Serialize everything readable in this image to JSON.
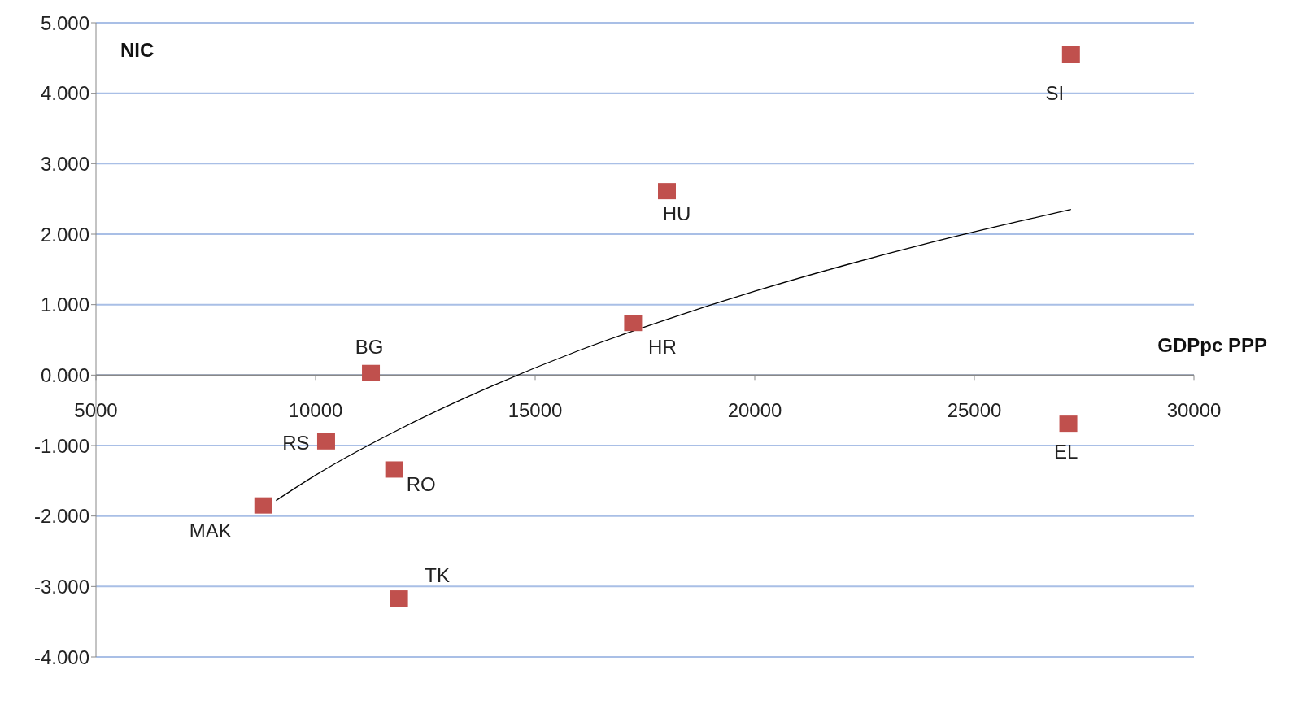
{
  "chart_data": {
    "type": "scatter",
    "xlabel": "GDPpc PPP",
    "ylabel": "NIC",
    "xlim": [
      5000,
      30000
    ],
    "xticks": [
      5000,
      10000,
      15000,
      20000,
      25000,
      30000
    ],
    "ylim": [
      -4,
      5
    ],
    "yticks": [
      {
        "value": -4,
        "label": "-4.000"
      },
      {
        "value": -3,
        "label": "-3.000"
      },
      {
        "value": -2,
        "label": "-2.000"
      },
      {
        "value": -1,
        "label": "-1.000"
      },
      {
        "value": 0,
        "label": "0.000"
      },
      {
        "value": 1,
        "label": "1.000"
      },
      {
        "value": 2,
        "label": "2.000"
      },
      {
        "value": 3,
        "label": "3.000"
      },
      {
        "value": 4,
        "label": "4.000"
      },
      {
        "value": 5,
        "label": "5.000"
      }
    ],
    "grid": "y",
    "legend": false,
    "marker": "square",
    "series": [
      {
        "color": "#c0504d",
        "x": [
          27200,
          18000,
          17230,
          11260,
          10240,
          11790,
          8810,
          11900,
          27140
        ],
        "values": [
          4.55,
          2.61,
          0.74,
          0.03,
          -0.94,
          -1.34,
          -1.85,
          -3.17,
          -0.69
        ]
      },
      {
        "type": "line",
        "color": "#000000",
        "marker": "none",
        "x": [
          9100,
          10000,
          12000,
          14000,
          16000,
          18000,
          20000,
          22000,
          24000,
          26000,
          27200
        ],
        "values": [
          -1.78,
          -1.42,
          -0.74,
          -0.16,
          0.35,
          0.79,
          1.19,
          1.55,
          1.88,
          2.18,
          2.35
        ]
      }
    ],
    "annotations": [
      {
        "text": "SI",
        "x": 27200,
        "y": 4.55
      },
      {
        "text": "HU",
        "x": 18000,
        "y": 2.61
      },
      {
        "text": "HR",
        "x": 17230,
        "y": 0.74
      },
      {
        "text": "BG",
        "x": 11260,
        "y": 0.03
      },
      {
        "text": "RS",
        "x": 10240,
        "y": -0.94
      },
      {
        "text": "RO",
        "x": 11790,
        "y": -1.34
      },
      {
        "text": "MAK",
        "x": 8810,
        "y": -1.85
      },
      {
        "text": "TK",
        "x": 11900,
        "y": -3.17
      },
      {
        "text": "EL",
        "x": 27140,
        "y": -0.69
      }
    ]
  }
}
